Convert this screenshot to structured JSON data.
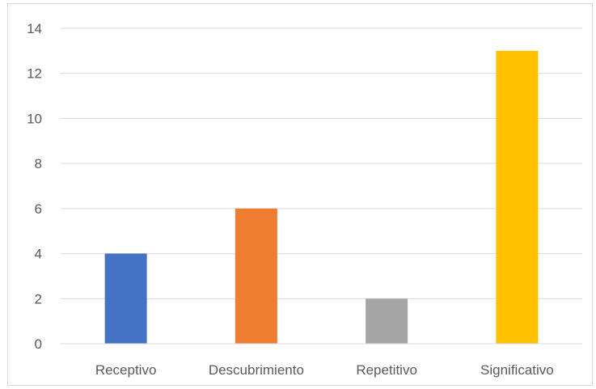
{
  "chart_data": {
    "type": "bar",
    "categories": [
      "Receptivo",
      "Descubrimiento",
      "Repetitivo",
      "Significativo"
    ],
    "values": [
      4,
      6,
      2,
      13
    ],
    "colors": [
      "#4472c4",
      "#ed7d31",
      "#a5a5a5",
      "#ffc000"
    ],
    "title": "",
    "xlabel": "",
    "ylabel": "",
    "ylim": [
      0,
      14
    ],
    "yticks": [
      "0",
      "2",
      "4",
      "6",
      "8",
      "10",
      "12",
      "14"
    ],
    "grid": true,
    "gridline_color": "#d9d9d9",
    "axis_color": "#d9d9d9"
  }
}
